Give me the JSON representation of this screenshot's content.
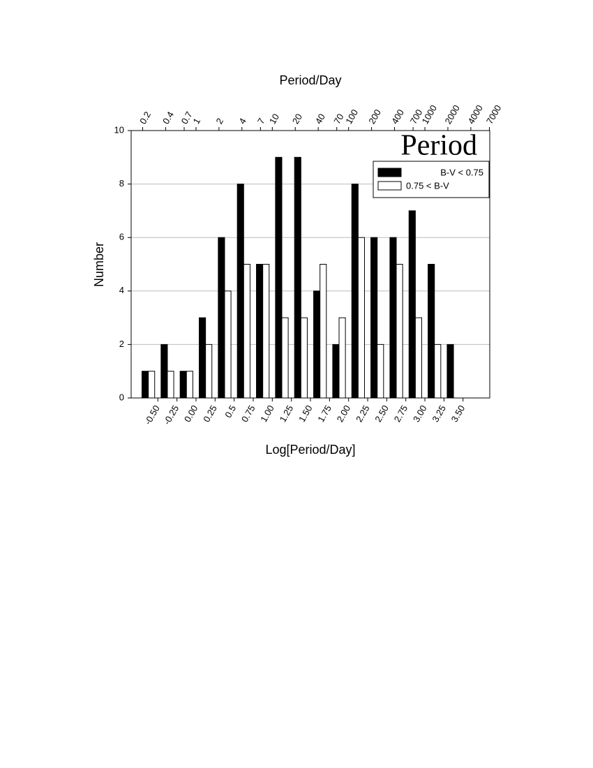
{
  "chart_data": {
    "type": "histogram",
    "title": "Period",
    "xlabel": "Log[Period/Day]",
    "ylabel": "Number",
    "x2label": "Period/Day",
    "bins": [
      -0.75,
      -0.5,
      -0.25,
      0,
      0.25,
      0.5,
      0.75,
      1,
      1.25,
      1.5,
      1.75,
      2,
      2.25,
      2.5,
      2.75,
      3,
      3.25,
      3.5
    ],
    "series": [
      {
        "name": "B-V < 0.75",
        "color": "#000000",
        "values": [
          1,
          2,
          1,
          3,
          6,
          8,
          5,
          9,
          9,
          4,
          2,
          8,
          6,
          6,
          7,
          5,
          2
        ]
      },
      {
        "name": "0.75 < B-V",
        "color": "#ffffff",
        "values": [
          1,
          1,
          1,
          2,
          4,
          5,
          5,
          3,
          3,
          5,
          3,
          6,
          2,
          5,
          3,
          2,
          0
        ]
      }
    ],
    "xlim": [
      -0.85,
      3.85
    ],
    "xticks": [
      {
        "value": -0.5,
        "label": "-0.50"
      },
      {
        "value": -0.25,
        "label": "-0.25"
      },
      {
        "value": 0,
        "label": "0.00"
      },
      0.25,
      0.5,
      0.75,
      {
        "value": 1,
        "label": "1.00"
      },
      1.25,
      {
        "value": 1.5,
        "label": "1.50"
      },
      1.75,
      {
        "value": 2,
        "label": "2.00"
      },
      2.25,
      {
        "value": 2.5,
        "label": "2.50"
      },
      2.75,
      {
        "value": 3,
        "label": "3.00"
      },
      3.25,
      {
        "value": 3.5,
        "label": "3.50"
      }
    ],
    "x2lim": [
      0.1413,
      7079
    ],
    "x2scale": "log",
    "x2ticks": [
      0.2,
      0.4,
      0.7,
      1,
      2,
      4,
      7,
      10,
      20,
      40,
      70,
      100,
      200,
      400,
      700,
      1000,
      2000,
      4000,
      7000
    ],
    "ylim": [
      0,
      10
    ],
    "yticks": [
      0,
      2,
      4,
      6,
      8,
      10
    ],
    "grid": true,
    "legend": "upper right"
  }
}
